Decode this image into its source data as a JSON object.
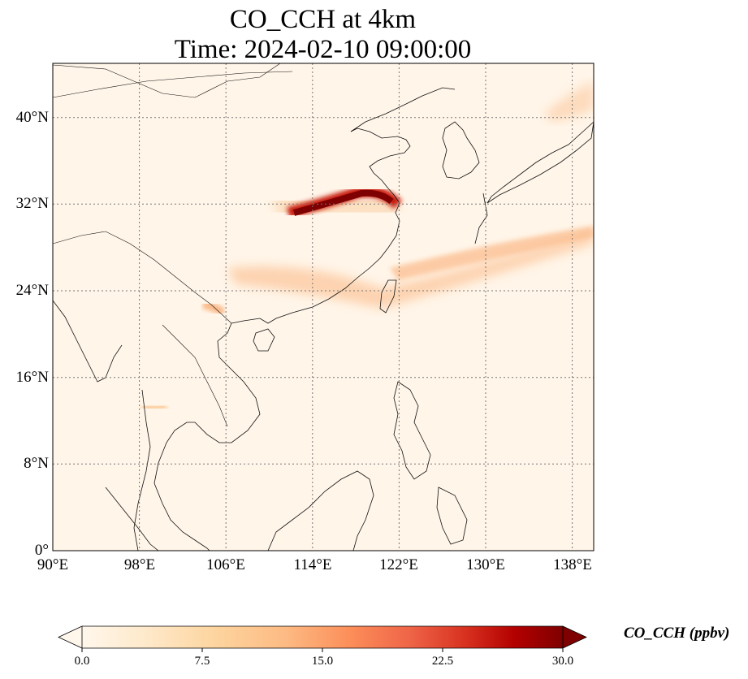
{
  "title_line1": "CO_CCH at 4km",
  "title_line2": "Time: 2024-02-10 09:00:00",
  "map": {
    "lon_range": [
      90,
      140
    ],
    "lat_range": [
      0,
      45
    ],
    "lon_ticks": [
      "90°E",
      "98°E",
      "106°E",
      "114°E",
      "122°E",
      "130°E",
      "138°E"
    ],
    "lat_ticks": [
      "0°",
      "8°N",
      "16°N",
      "24°N",
      "32°N",
      "40°N"
    ],
    "gridlines": "dotted"
  },
  "colorbar": {
    "label": "CO_CCH (ppbv)",
    "ticks": [
      "0.0",
      "7.5",
      "15.0",
      "22.5",
      "30.0"
    ],
    "range": [
      0,
      30
    ],
    "extend": "both",
    "colormap": "OrRd",
    "colors": [
      "#fff7ec",
      "#fee8c8",
      "#fdd49e",
      "#fdbb84",
      "#fc8d59",
      "#ef6548",
      "#d7301f",
      "#b30000",
      "#7f0000"
    ]
  }
}
